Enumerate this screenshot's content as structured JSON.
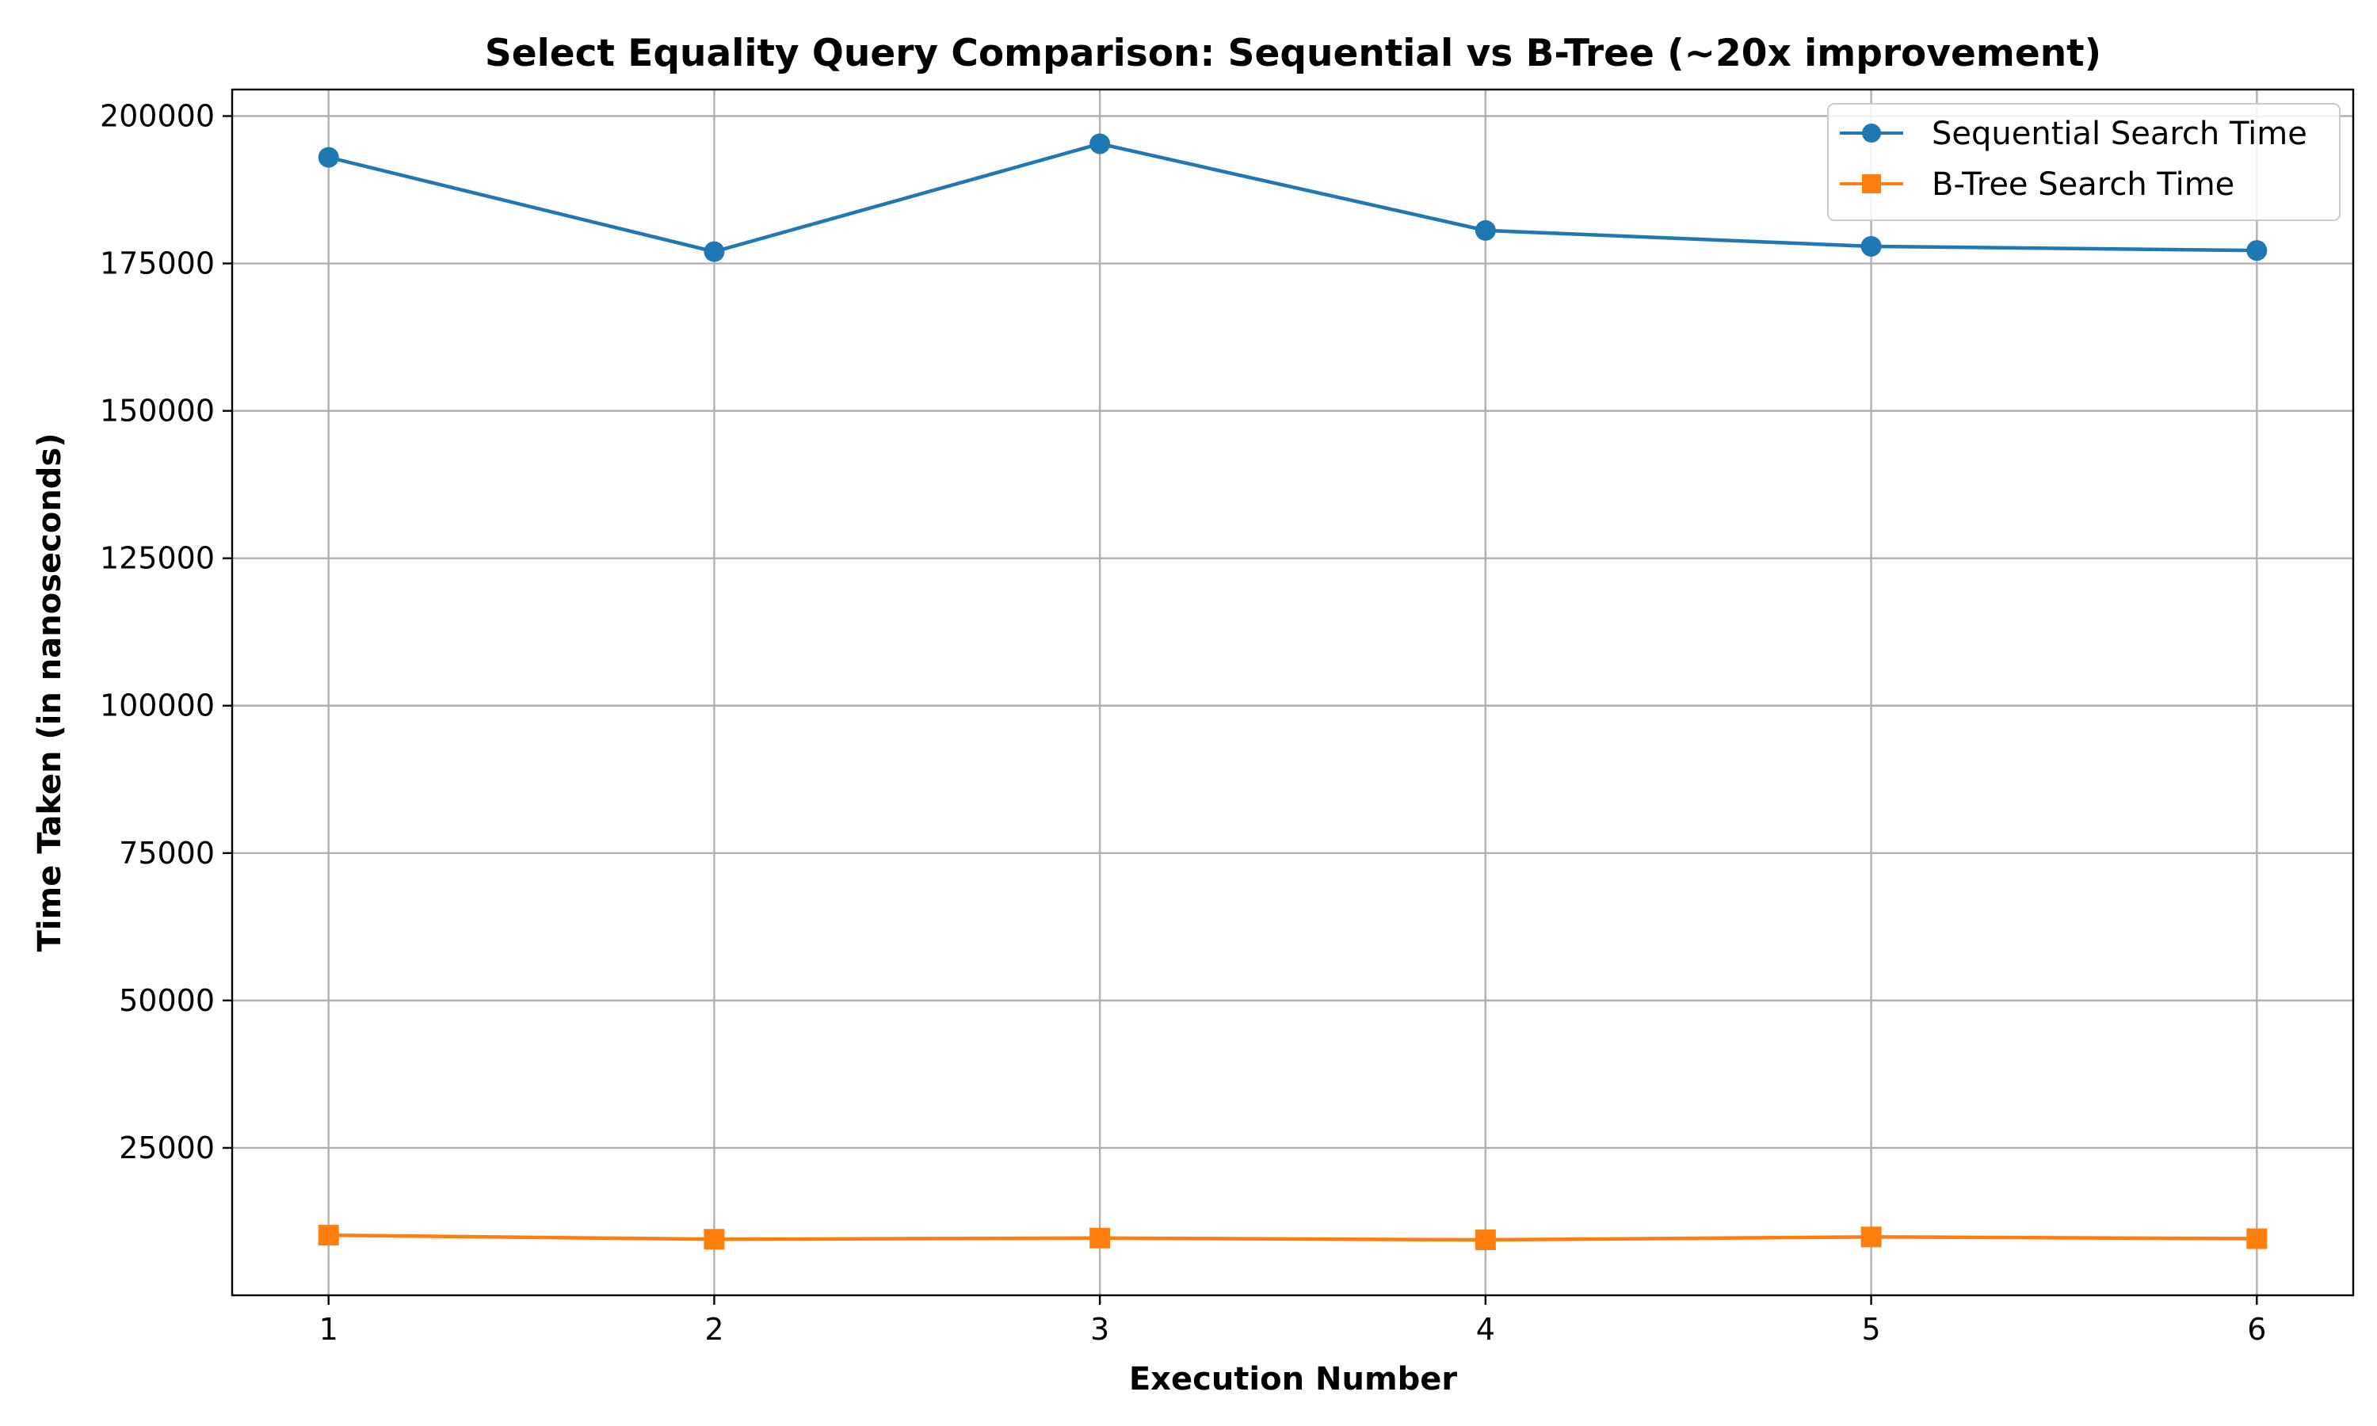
{
  "chart_data": {
    "type": "line",
    "title": "Select Equality Query Comparison: Sequential vs B-Tree (~20x improvement)",
    "xlabel": "Execution Number",
    "ylabel": "Time Taken (in nanoseconds)",
    "x": [
      1,
      2,
      3,
      4,
      5,
      6
    ],
    "x_ticks": [
      "1",
      "2",
      "3",
      "4",
      "5",
      "6"
    ],
    "xlim": [
      0.75,
      6.25
    ],
    "ylim": [
      0,
      204500
    ],
    "y_ticks": [
      25000,
      50000,
      75000,
      100000,
      125000,
      150000,
      175000,
      200000
    ],
    "y_tick_labels": [
      "25000",
      "50000",
      "75000",
      "100000",
      "125000",
      "150000",
      "175000",
      "200000"
    ],
    "grid": true,
    "legend_position": "top-right",
    "series": [
      {
        "name": "Sequential Search Time",
        "color": "#1f77b4",
        "marker": "circle",
        "values": [
          193000,
          177000,
          195300,
          180600,
          177900,
          177200
        ]
      },
      {
        "name": "B-Tree Search Time",
        "color": "#ff7f0e",
        "marker": "square",
        "values": [
          10200,
          9500,
          9700,
          9400,
          9900,
          9600
        ]
      }
    ]
  }
}
